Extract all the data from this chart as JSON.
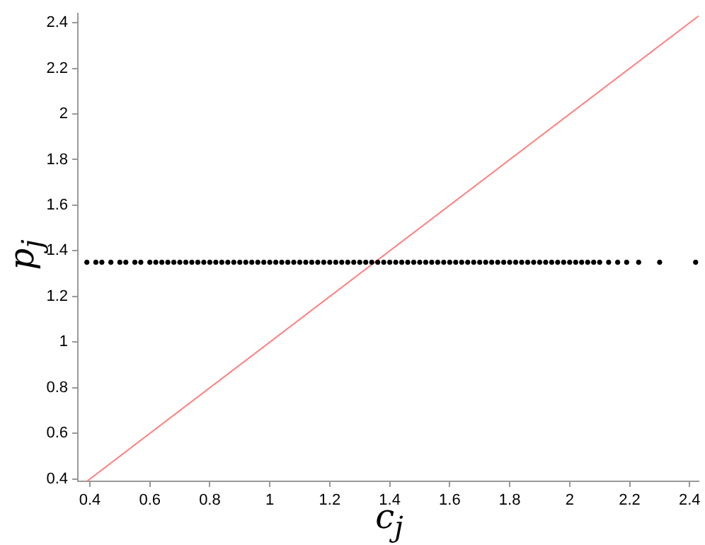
{
  "chart_data": {
    "type": "scatter",
    "xlabel": "c$_{j}$",
    "ylabel": "p$_{j}$",
    "xlim": [
      0.36,
      2.43
    ],
    "ylim": [
      0.39,
      2.44
    ],
    "xticks": [
      0.4,
      0.6,
      0.8,
      1,
      1.2,
      1.4,
      1.6,
      1.8,
      2,
      2.2,
      2.4
    ],
    "yticks": [
      0.4,
      0.6,
      0.8,
      1,
      1.2,
      1.4,
      1.6,
      1.8,
      2,
      2.2,
      2.4
    ],
    "grid": false,
    "legend": false,
    "series": [
      {
        "marker": "circle",
        "color": "#000000",
        "x": [
          0.39,
          0.42,
          0.44,
          0.47,
          0.5,
          0.52,
          0.55,
          0.57,
          0.6,
          0.62,
          0.64,
          0.66,
          0.68,
          0.7,
          0.72,
          0.74,
          0.76,
          0.78,
          0.8,
          0.82,
          0.84,
          0.86,
          0.88,
          0.9,
          0.92,
          0.94,
          0.96,
          0.98,
          1,
          1.02,
          1.04,
          1.06,
          1.08,
          1.1,
          1.12,
          1.14,
          1.16,
          1.18,
          1.2,
          1.22,
          1.24,
          1.26,
          1.28,
          1.3,
          1.32,
          1.34,
          1.36,
          1.38,
          1.4,
          1.42,
          1.44,
          1.46,
          1.48,
          1.5,
          1.52,
          1.54,
          1.56,
          1.58,
          1.6,
          1.62,
          1.64,
          1.66,
          1.68,
          1.7,
          1.72,
          1.74,
          1.76,
          1.78,
          1.8,
          1.82,
          1.84,
          1.86,
          1.88,
          1.9,
          1.92,
          1.94,
          1.96,
          1.98,
          2,
          2.02,
          2.04,
          2.06,
          2.08,
          2.1,
          2.13,
          2.16,
          2.19,
          2.23,
          2.3,
          2.42
        ],
        "values": [
          1.35,
          1.35,
          1.35,
          1.35,
          1.35,
          1.35,
          1.35,
          1.35,
          1.35,
          1.35,
          1.35,
          1.35,
          1.35,
          1.35,
          1.35,
          1.35,
          1.35,
          1.35,
          1.35,
          1.35,
          1.35,
          1.35,
          1.35,
          1.35,
          1.35,
          1.35,
          1.35,
          1.35,
          1.35,
          1.35,
          1.35,
          1.35,
          1.35,
          1.35,
          1.35,
          1.35,
          1.35,
          1.35,
          1.35,
          1.35,
          1.35,
          1.35,
          1.35,
          1.35,
          1.35,
          1.35,
          1.35,
          1.35,
          1.35,
          1.35,
          1.35,
          1.35,
          1.35,
          1.35,
          1.35,
          1.35,
          1.35,
          1.35,
          1.35,
          1.35,
          1.35,
          1.35,
          1.35,
          1.35,
          1.35,
          1.35,
          1.35,
          1.35,
          1.35,
          1.35,
          1.35,
          1.35,
          1.35,
          1.35,
          1.35,
          1.35,
          1.35,
          1.35,
          1.35,
          1.35,
          1.35,
          1.35,
          1.35,
          1.35,
          1.35,
          1.35,
          1.35,
          1.35,
          1.35,
          1.35
        ]
      },
      {
        "type": "line",
        "marker": "none",
        "color": "#ff7f7f",
        "line_style": "solid",
        "x": [
          0.39,
          2.43
        ],
        "values": [
          0.39,
          2.43
        ]
      }
    ]
  }
}
